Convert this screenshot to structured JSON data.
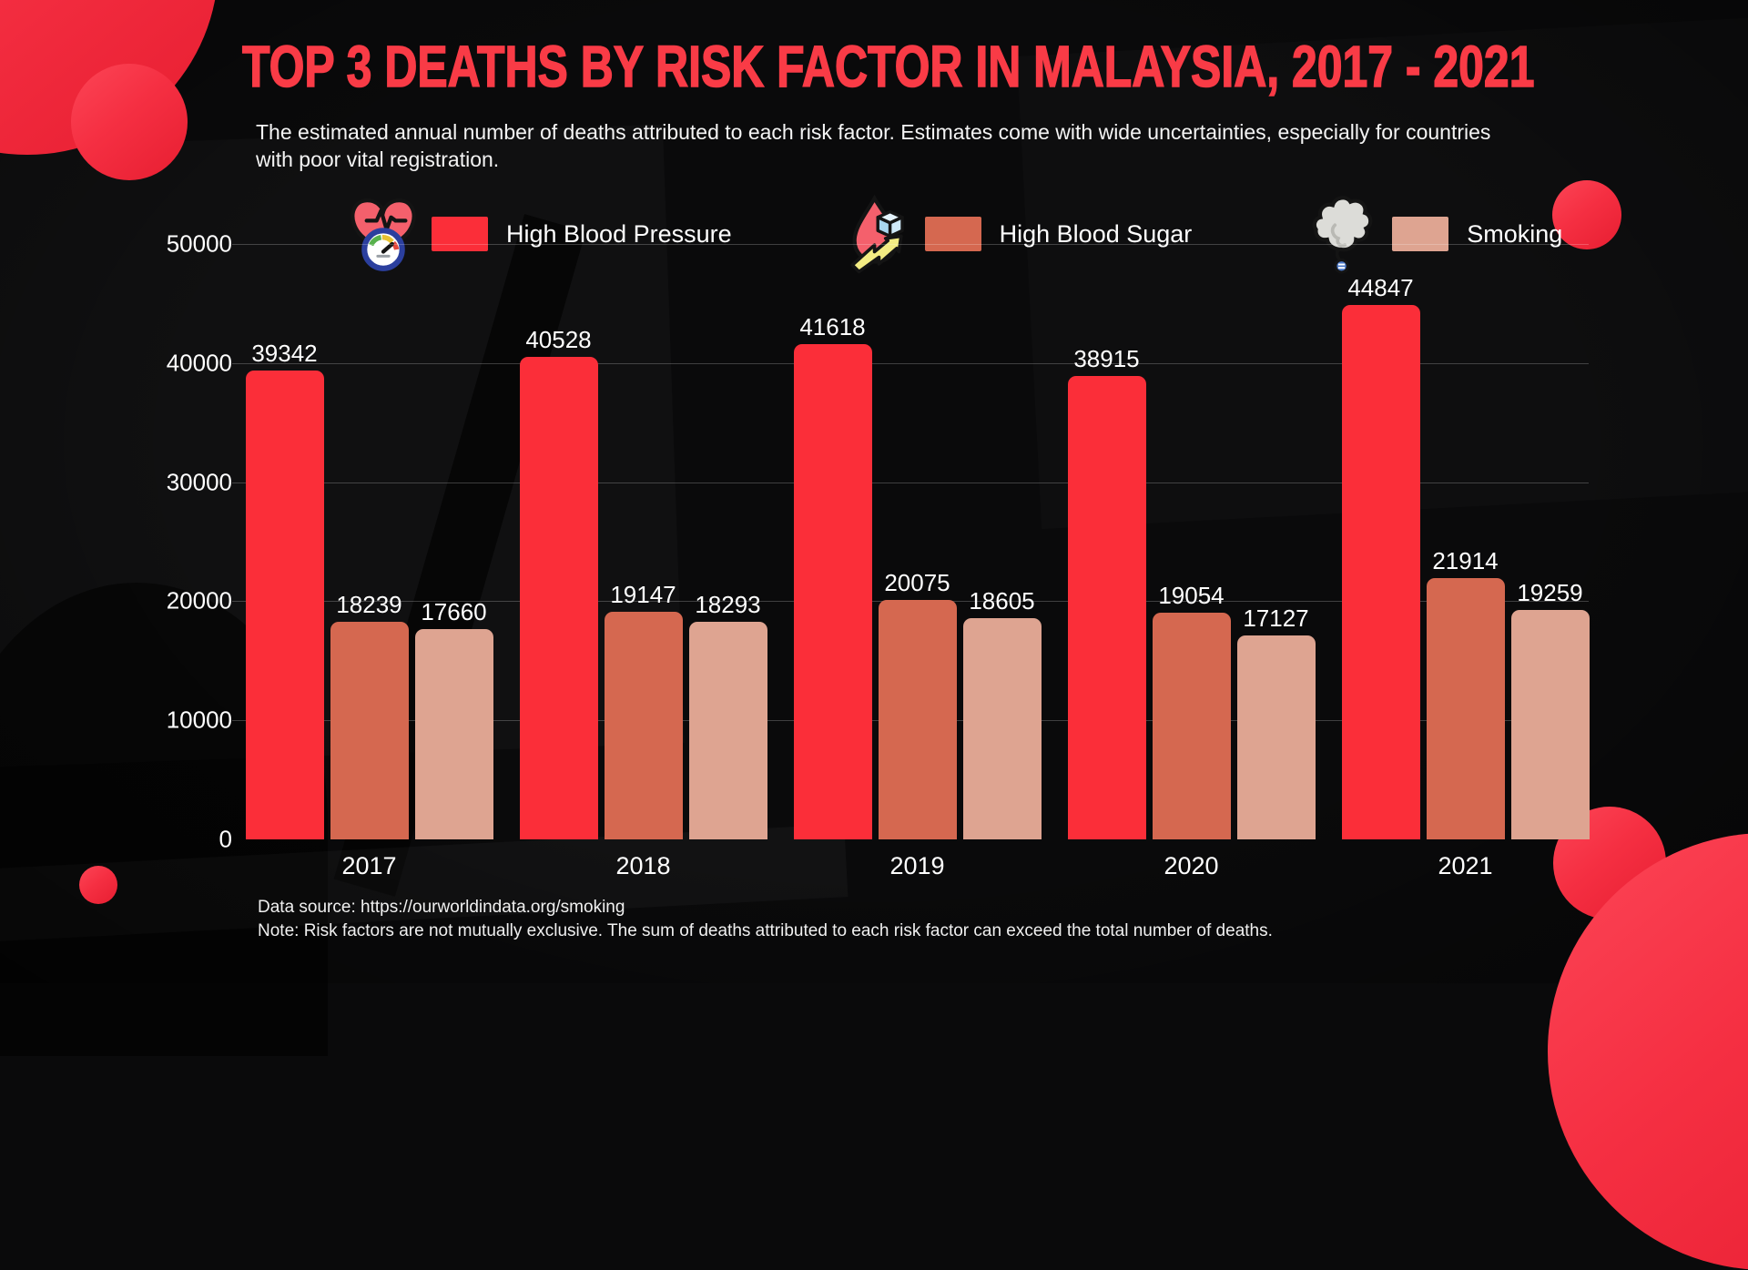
{
  "title": "TOP 3 DEATHS BY RISK FACTOR IN MALAYSIA, 2017 - 2021",
  "subtitle": "The estimated annual number of deaths attributed to each risk factor. Estimates come with wide uncertainties, especially for countries with poor vital registration.",
  "colors": {
    "accent_red": "#fb2e39",
    "salmon_dark": "#d56850",
    "salmon_light": "#dea491",
    "title_red": "#f93b46",
    "background": "#0a0a0b",
    "text": "#ffffff"
  },
  "legend": [
    {
      "label": "High Blood Pressure",
      "color": "#fb2e39",
      "icon": "blood-pressure-icon"
    },
    {
      "label": "High Blood Sugar",
      "color": "#d56850",
      "icon": "blood-sugar-icon"
    },
    {
      "label": "Smoking",
      "color": "#dea491",
      "icon": "smoking-icon"
    }
  ],
  "chart_data": {
    "type": "bar",
    "title": "Top 3 deaths by risk factor in Malaysia, 2017 - 2021",
    "categories": [
      "2017",
      "2018",
      "2019",
      "2020",
      "2021"
    ],
    "series": [
      {
        "name": "High Blood Pressure",
        "color": "#fb2e39",
        "values": [
          39342,
          40528,
          41618,
          38915,
          44847
        ]
      },
      {
        "name": "High Blood Sugar",
        "color": "#d56850",
        "values": [
          18239,
          19147,
          20075,
          19054,
          21914
        ]
      },
      {
        "name": "Smoking",
        "color": "#dea491",
        "values": [
          17660,
          18293,
          18605,
          17127,
          19259
        ]
      }
    ],
    "xlabel": "",
    "ylabel": "",
    "yticks": [
      0,
      10000,
      20000,
      30000,
      40000,
      50000
    ],
    "ylim": [
      0,
      50000
    ],
    "grid": true,
    "legend_position": "top",
    "value_labels": true
  },
  "footer": {
    "source": "Data source: https://ourworldindata.org/smoking",
    "note": "Note: Risk factors are not mutually exclusive. The sum of deaths attributed to each risk factor can exceed the total number of deaths."
  }
}
